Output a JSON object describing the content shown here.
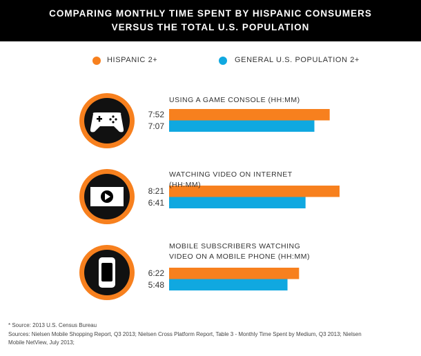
{
  "title": "COMPARING MONTHLY TIME SPENT BY HISPANIC CONSUMERS VERSUS THE TOTAL U.S. POPULATION",
  "chart_data": {
    "type": "bar",
    "categories": [
      "USING A GAME CONSOLE (HH:MM)",
      "WATCHING VIDEO ON INTERNET (HH:MM)",
      "MOBILE SUBSCRIBERS WATCHING VIDEO ON A MOBILE PHONE (HH:MM)"
    ],
    "series": [
      {
        "name": "HISPANIC 2+",
        "color": "#f7801e",
        "values": [
          472,
          501,
          382
        ],
        "value_labels": [
          "7:52",
          "8:21",
          "6:22"
        ]
      },
      {
        "name": "GENERAL U.S. POPULATION 2+",
        "color": "#10a8e0",
        "values": [
          427,
          401,
          348
        ],
        "value_labels": [
          "7:07",
          "6:41",
          "5:48"
        ]
      }
    ]
  },
  "footnotes": [
    "* Source: 2013 U.S. Census Bureau",
    "Sources: Nielsen Mobile Shopping Report, Q3 2013; Nielsen Cross Platform Report, Table 3 - Monthly Time Spent by Medium, Q3 2013; Nielsen Mobile NetView, July 2013;"
  ]
}
